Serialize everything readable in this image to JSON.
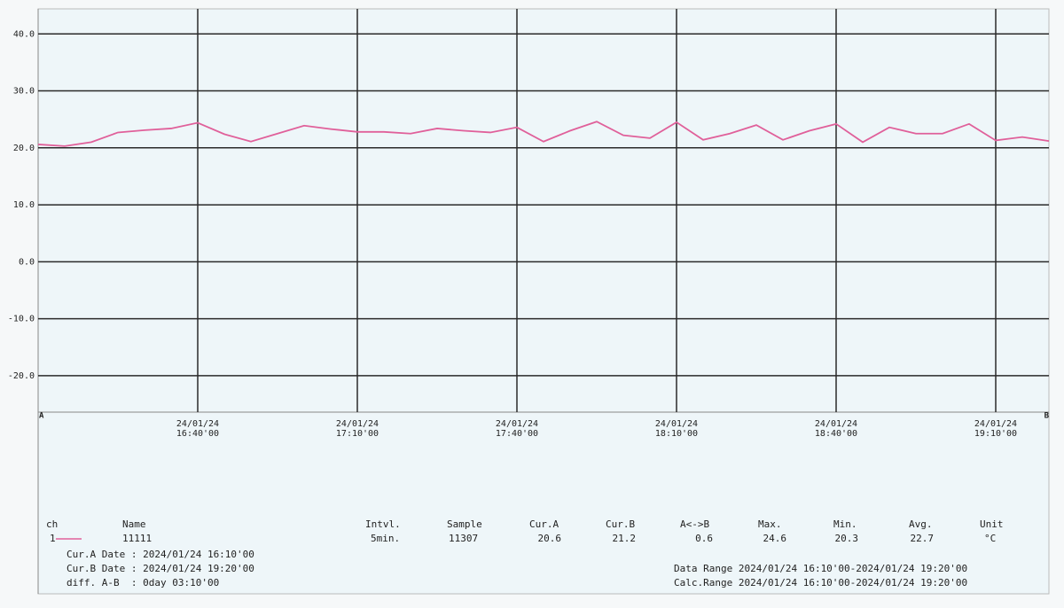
{
  "chart_data": {
    "type": "line",
    "categories": [
      null,
      null,
      null,
      null,
      null,
      null,
      "24/01/24\n16:40'00",
      null,
      null,
      null,
      null,
      null,
      "24/01/24\n17:10'00",
      null,
      null,
      null,
      null,
      null,
      "24/01/24\n17:40'00",
      null,
      null,
      null,
      null,
      null,
      "24/01/24\n18:10'00",
      null,
      null,
      null,
      null,
      null,
      "24/01/24\n18:40'00",
      null,
      null,
      null,
      null,
      null,
      "24/01/24\n19:10'00",
      null,
      null
    ],
    "series": [
      {
        "name": "11111",
        "color": "#e0609a",
        "values": [
          20.6,
          20.3,
          21.0,
          22.7,
          23.1,
          23.4,
          24.4,
          22.4,
          21.1,
          22.5,
          23.9,
          23.3,
          22.8,
          22.8,
          22.5,
          23.4,
          23.0,
          22.7,
          23.6,
          21.1,
          23.0,
          24.6,
          22.2,
          21.7,
          24.5,
          21.4,
          22.5,
          24.0,
          21.4,
          23.0,
          24.2,
          21.0,
          23.6,
          22.5,
          22.5,
          24.2,
          21.3,
          21.9,
          21.2
        ]
      }
    ],
    "ylim": [
      -26.4,
      44.4
    ],
    "yticks": [
      {
        "value": 40,
        "label": "40.0"
      },
      {
        "value": 30,
        "label": "30.0"
      },
      {
        "value": 20,
        "label": "20.0"
      },
      {
        "value": 10,
        "label": "10.0"
      },
      {
        "value": 0,
        "label": "0.0"
      },
      {
        "value": -10,
        "label": "-10.0"
      },
      {
        "value": -20,
        "label": "-20.0"
      }
    ],
    "grid": true,
    "cursor_a": "A",
    "cursor_b": "B",
    "table": {
      "headers": [
        "ch",
        "Name",
        "Intvl.",
        "Sample",
        "Cur.A",
        "Cur.B",
        "A<->B",
        "Max.",
        "Min.",
        "Avg.",
        "Unit"
      ],
      "channel": "1",
      "interval": "5min.",
      "sample": "11307",
      "cur_a": "20.6",
      "cur_b": "21.2",
      "diff": "0.6",
      "max": "24.6",
      "min": "20.3",
      "avg": "22.7",
      "unit": "°C"
    },
    "cur_a_date": "Cur.A Date : 2024/01/24 16:10'00",
    "cur_b_date": "Cur.B Date : 2024/01/24 19:20'00",
    "diff_ab": "diff. A-B  : 0day 03:10'00",
    "data_range": "Data Range 2024/01/24 16:10'00-2024/01/24 19:20'00",
    "calc_range": "Calc.Range 2024/01/24 16:10'00-2024/01/24 19:20'00"
  }
}
